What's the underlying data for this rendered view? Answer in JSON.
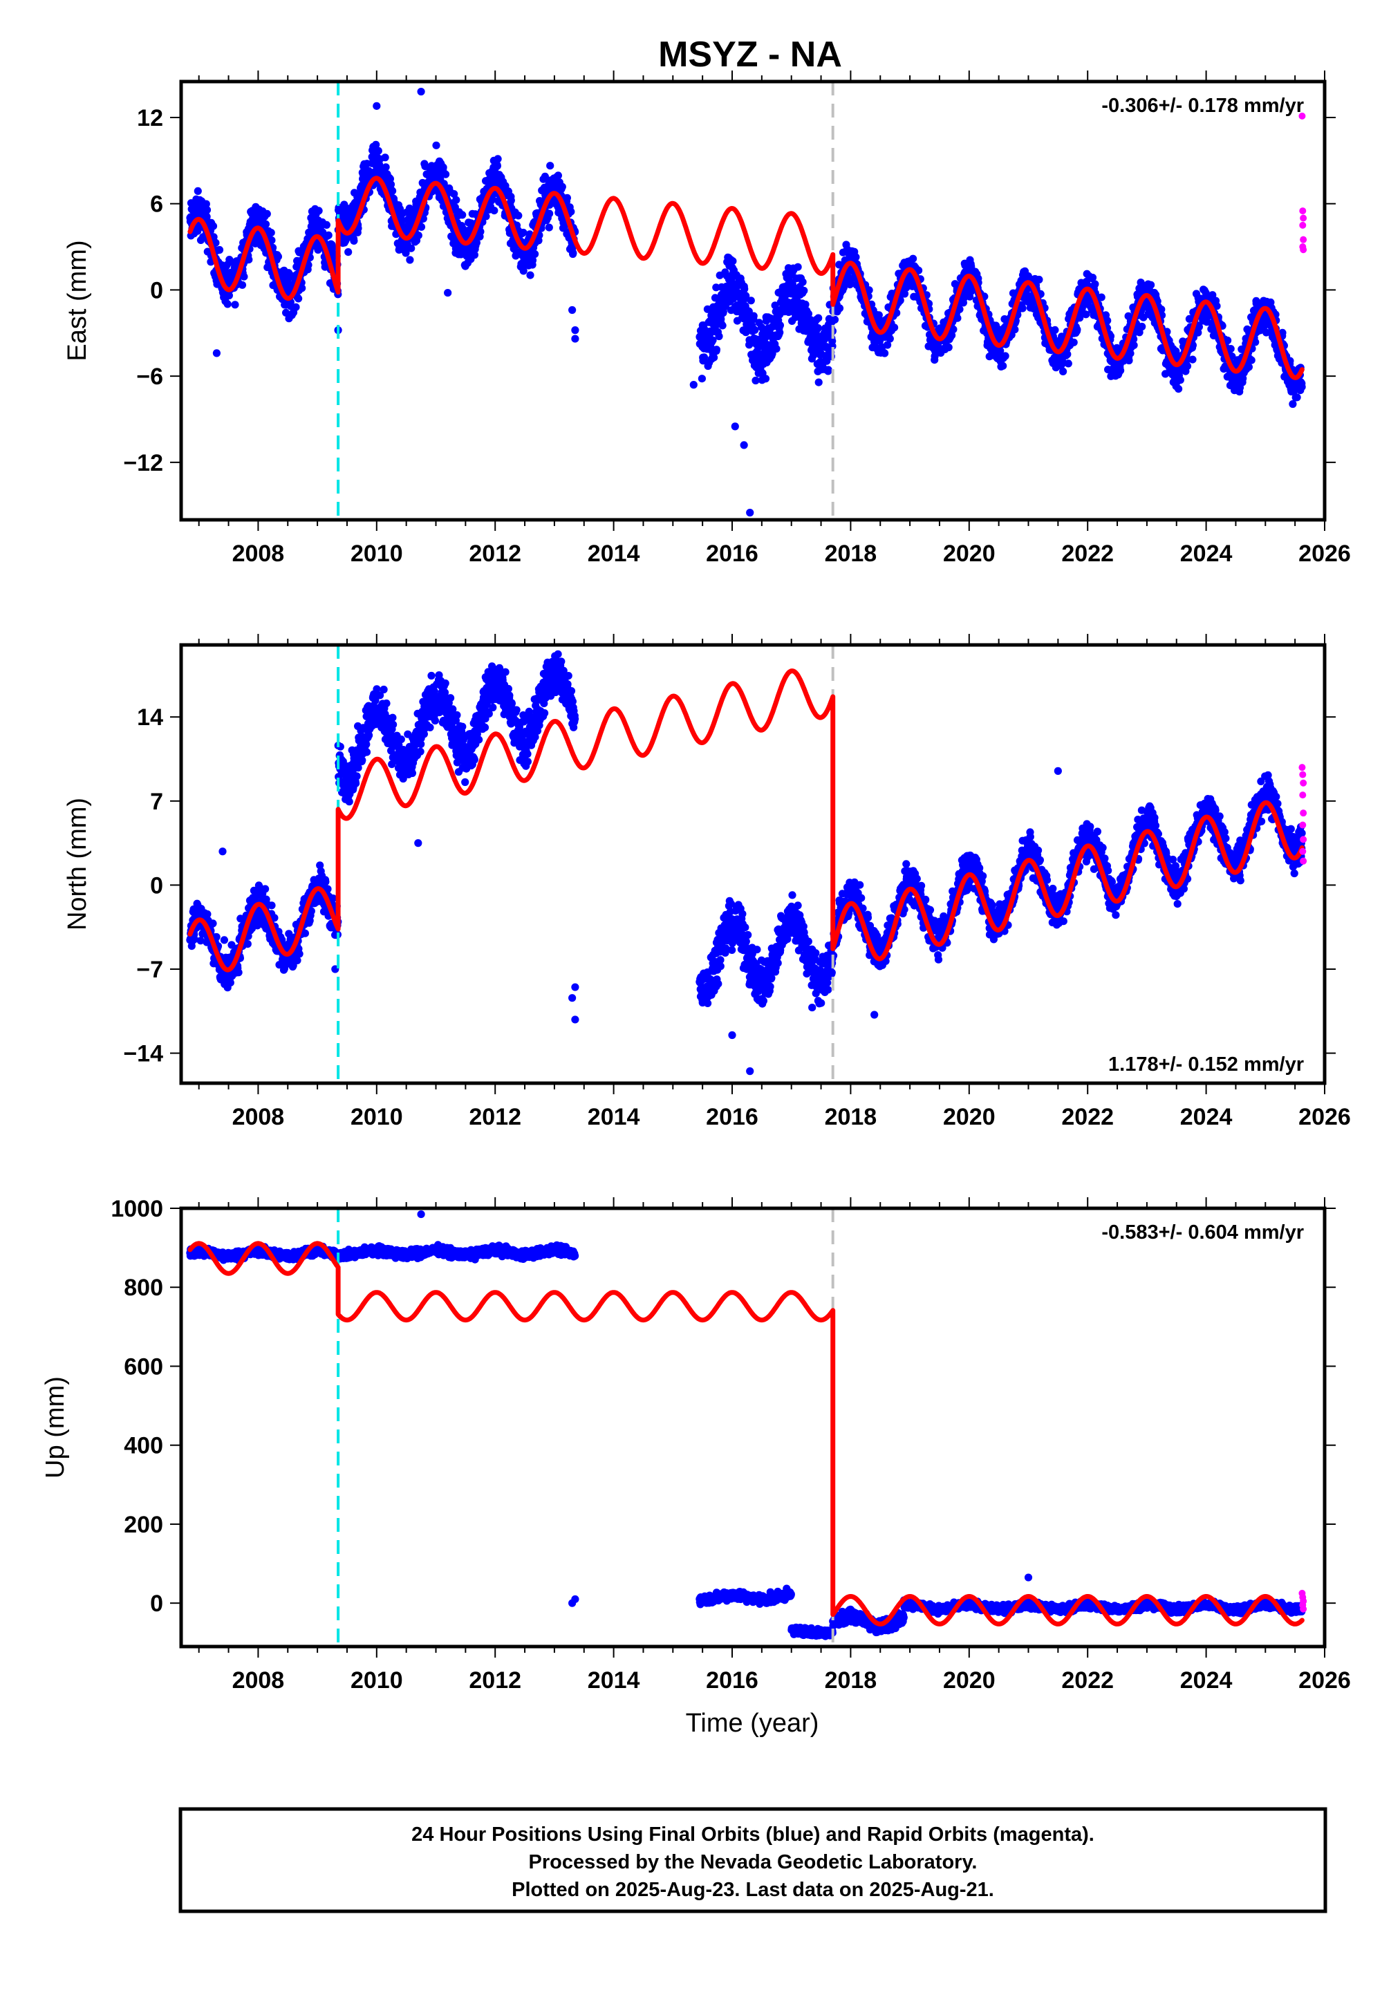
{
  "title": "MSYZ - NA",
  "xlabel": "Time (year)",
  "colors": {
    "final_orbits": "#0000ff",
    "rapid_orbits": "#ff00ff",
    "model": "#ff0000",
    "antenna_change": "#00e5e5",
    "equipment_change": "#c0c0c0"
  },
  "footer": {
    "lines": [
      "24 Hour Positions Using Final Orbits (blue) and Rapid Orbits (magenta).",
      "Processed by the Nevada Geodetic Laboratory.",
      "Plotted on 2025-Aug-23. Last data on 2025-Aug-21."
    ]
  },
  "chart_data": [
    {
      "type": "scatter",
      "name": "east",
      "ylabel": "East (mm)",
      "rate_text": "-0.306+/- 0.178 mm/yr",
      "rate_position": "top-right",
      "xlim": [
        2006.7,
        2026.0
      ],
      "ylim": [
        -16,
        14.5
      ],
      "x_ticks": [
        2008,
        2010,
        2012,
        2014,
        2016,
        2018,
        2020,
        2022,
        2024,
        2026
      ],
      "x_tick_labels": [
        "2008",
        "2010",
        "2012",
        "2014",
        "2016",
        "2018",
        "2020",
        "2022",
        "2024",
        "2026"
      ],
      "y_ticks": [
        -12,
        -6,
        0,
        6,
        12
      ],
      "y_tick_labels": [
        "−12",
        "−6",
        "0",
        "6",
        "12"
      ],
      "event_lines": [
        {
          "x": 2009.35,
          "kind": "antenna_change"
        },
        {
          "x": 2017.7,
          "kind": "equipment_change"
        }
      ],
      "data_segments": [
        {
          "start": 2006.85,
          "end": 2009.35,
          "offset": 3.0,
          "slope": -0.6,
          "amp": 2.3,
          "phase": 0.25,
          "noise": 1.3
        },
        {
          "start": 2009.35,
          "end": 2013.35,
          "offset": 6.5,
          "slope": -0.5,
          "amp": 2.2,
          "phase": 0.25,
          "noise": 1.5
        },
        {
          "start": 2015.45,
          "end": 2017.7,
          "offset": -1.8,
          "slope": -0.2,
          "amp": 2.2,
          "phase": 0.25,
          "noise": 1.7
        },
        {
          "start": 2017.7,
          "end": 2025.62,
          "offset": -0.5,
          "slope": -0.45,
          "amp": 2.3,
          "phase": 0.25,
          "noise": 1.2
        }
      ],
      "model_segments": [
        {
          "start": 2006.85,
          "end": 2009.35,
          "offset": 2.7,
          "slope": -0.6,
          "amp": 2.3,
          "phase": 0.25
        },
        {
          "start": 2009.35,
          "end": 2017.7,
          "offset": 6.0,
          "slope": -0.35,
          "amp": 2.0,
          "phase": 0.25
        },
        {
          "start": 2017.7,
          "end": 2025.62,
          "offset": -0.3,
          "slope": -0.45,
          "amp": 2.3,
          "phase": 0.25
        }
      ],
      "outliers": [
        {
          "x": 2007.3,
          "y": -4.4
        },
        {
          "x": 2009.35,
          "y": -2.8
        },
        {
          "x": 2010.0,
          "y": 12.8
        },
        {
          "x": 2010.75,
          "y": 13.8
        },
        {
          "x": 2011.2,
          "y": -0.2
        },
        {
          "x": 2013.35,
          "y": -3.4
        },
        {
          "x": 2013.3,
          "y": -1.4
        },
        {
          "x": 2013.35,
          "y": -2.8
        },
        {
          "x": 2015.35,
          "y": -6.6
        },
        {
          "x": 2016.2,
          "y": -10.8
        },
        {
          "x": 2016.3,
          "y": -15.5
        },
        {
          "x": 2016.05,
          "y": -9.5
        }
      ],
      "rapid_points": [
        {
          "x": 2025.62,
          "y": 12.1
        },
        {
          "x": 2025.63,
          "y": 5.5
        },
        {
          "x": 2025.64,
          "y": 5.0
        },
        {
          "x": 2025.63,
          "y": 4.5
        },
        {
          "x": 2025.64,
          "y": 3.5
        },
        {
          "x": 2025.63,
          "y": 3.0
        },
        {
          "x": 2025.64,
          "y": 2.8
        }
      ]
    },
    {
      "type": "scatter",
      "name": "north",
      "ylabel": "North (mm)",
      "rate_text": "1.178+/- 0.152 mm/yr",
      "rate_position": "bottom-right",
      "xlim": [
        2006.7,
        2026.0
      ],
      "ylim": [
        -16.5,
        20
      ],
      "x_ticks": [
        2008,
        2010,
        2012,
        2014,
        2016,
        2018,
        2020,
        2022,
        2024,
        2026
      ],
      "x_tick_labels": [
        "2008",
        "2010",
        "2012",
        "2014",
        "2016",
        "2018",
        "2020",
        "2022",
        "2024",
        "2026"
      ],
      "y_ticks": [
        -14,
        -7,
        0,
        7,
        14
      ],
      "y_tick_labels": [
        "−14",
        "−7",
        "0",
        "7",
        "14"
      ],
      "event_lines": [
        {
          "x": 2009.35,
          "kind": "antenna_change"
        },
        {
          "x": 2017.7,
          "kind": "equipment_change"
        }
      ],
      "data_segments": [
        {
          "start": 2006.85,
          "end": 2009.35,
          "offset": -5.5,
          "slope": 1.3,
          "amp": 2.4,
          "phase": 0.25,
          "noise": 1.4
        },
        {
          "start": 2009.35,
          "end": 2013.35,
          "offset": 11.5,
          "slope": 1.0,
          "amp": 2.6,
          "phase": 0.25,
          "noise": 1.6
        },
        {
          "start": 2015.45,
          "end": 2017.7,
          "offset": -6.0,
          "slope": 0.4,
          "amp": 2.5,
          "phase": 0.25,
          "noise": 1.6
        },
        {
          "start": 2017.7,
          "end": 2025.62,
          "offset": -4.0,
          "slope": 1.2,
          "amp": 2.6,
          "phase": 0.25,
          "noise": 1.3
        }
      ],
      "model_segments": [
        {
          "start": 2006.85,
          "end": 2009.35,
          "offset": -5.5,
          "slope": 1.3,
          "amp": 2.4,
          "phase": 0.25
        },
        {
          "start": 2009.35,
          "end": 2017.7,
          "offset": 7.6,
          "slope": 1.05,
          "amp": 2.2,
          "phase": 0.25
        },
        {
          "start": 2017.7,
          "end": 2025.62,
          "offset": -4.5,
          "slope": 1.2,
          "amp": 2.6,
          "phase": 0.25
        }
      ],
      "outliers": [
        {
          "x": 2013.35,
          "y": -8.5
        },
        {
          "x": 2013.35,
          "y": -11.2
        },
        {
          "x": 2013.3,
          "y": -9.4
        },
        {
          "x": 2010.7,
          "y": 3.5
        },
        {
          "x": 2016.0,
          "y": -12.5
        },
        {
          "x": 2016.3,
          "y": -15.5
        },
        {
          "x": 2017.35,
          "y": -10.2
        },
        {
          "x": 2018.4,
          "y": -10.8
        },
        {
          "x": 2021.5,
          "y": 9.5
        },
        {
          "x": 2007.4,
          "y": 2.8
        },
        {
          "x": 2009.3,
          "y": -7.0
        },
        {
          "x": 2020.4,
          "y": -4.2
        }
      ],
      "rapid_points": [
        {
          "x": 2025.62,
          "y": 9.8
        },
        {
          "x": 2025.63,
          "y": 9.2
        },
        {
          "x": 2025.64,
          "y": 8.5
        },
        {
          "x": 2025.63,
          "y": 7.5
        },
        {
          "x": 2025.64,
          "y": 6.0
        },
        {
          "x": 2025.63,
          "y": 5.0
        },
        {
          "x": 2025.64,
          "y": 3.8
        },
        {
          "x": 2025.63,
          "y": 2.8
        },
        {
          "x": 2025.64,
          "y": 2.0
        }
      ]
    },
    {
      "type": "scatter",
      "name": "up",
      "ylabel": "Up (mm)",
      "rate_text": "-0.583+/- 0.604 mm/yr",
      "rate_position": "top-right",
      "xlim": [
        2006.7,
        2026.0
      ],
      "ylim": [
        -110,
        1000
      ],
      "x_ticks": [
        2008,
        2010,
        2012,
        2014,
        2016,
        2018,
        2020,
        2022,
        2024,
        2026
      ],
      "x_tick_labels": [
        "2008",
        "2010",
        "2012",
        "2014",
        "2016",
        "2018",
        "2020",
        "2022",
        "2024",
        "2026"
      ],
      "y_ticks": [
        0,
        200,
        400,
        600,
        800,
        1000
      ],
      "y_tick_labels": [
        "0",
        "200",
        "400",
        "600",
        "800",
        "1000"
      ],
      "event_lines": [
        {
          "x": 2009.35,
          "kind": "antenna_change"
        },
        {
          "x": 2017.7,
          "kind": "equipment_change"
        }
      ],
      "data_segments": [
        {
          "start": 2006.85,
          "end": 2009.35,
          "offset": 885,
          "slope": 0,
          "amp": 6,
          "phase": 0.25,
          "noise": 9
        },
        {
          "start": 2009.35,
          "end": 2013.35,
          "offset": 888,
          "slope": 0,
          "amp": 6,
          "phase": 0.25,
          "noise": 9
        },
        {
          "start": 2015.45,
          "end": 2017.0,
          "offset": 15,
          "slope": 0,
          "amp": 6,
          "phase": 0.25,
          "noise": 10
        },
        {
          "start": 2017.0,
          "end": 2017.7,
          "offset": -72,
          "slope": 0,
          "amp": 3,
          "phase": 0.25,
          "noise": 8
        },
        {
          "start": 2017.7,
          "end": 2018.9,
          "offset": -45,
          "slope": 0,
          "amp": 15,
          "phase": 0.25,
          "noise": 14
        },
        {
          "start": 2018.9,
          "end": 2025.62,
          "offset": -10,
          "slope": 0,
          "amp": 6,
          "phase": 0.25,
          "noise": 8
        }
      ],
      "model_segments": [
        {
          "start": 2006.85,
          "end": 2009.35,
          "offset": 873,
          "slope": 0,
          "amp": 38,
          "phase": 0.25
        },
        {
          "start": 2009.35,
          "end": 2017.7,
          "offset": 752,
          "slope": 0,
          "amp": 35,
          "phase": 0.25
        },
        {
          "start": 2017.7,
          "end": 2025.62,
          "offset": -18,
          "slope": 0,
          "amp": 35,
          "phase": 0.25
        }
      ],
      "outliers": [
        {
          "x": 2010.75,
          "y": 985
        },
        {
          "x": 2013.35,
          "y": 10
        },
        {
          "x": 2013.3,
          "y": 0
        },
        {
          "x": 2021.0,
          "y": 65
        }
      ],
      "rapid_points": [
        {
          "x": 2025.62,
          "y": 25
        },
        {
          "x": 2025.63,
          "y": 15
        },
        {
          "x": 2025.64,
          "y": 5
        },
        {
          "x": 2025.63,
          "y": -5
        },
        {
          "x": 2025.64,
          "y": -15
        }
      ]
    }
  ]
}
